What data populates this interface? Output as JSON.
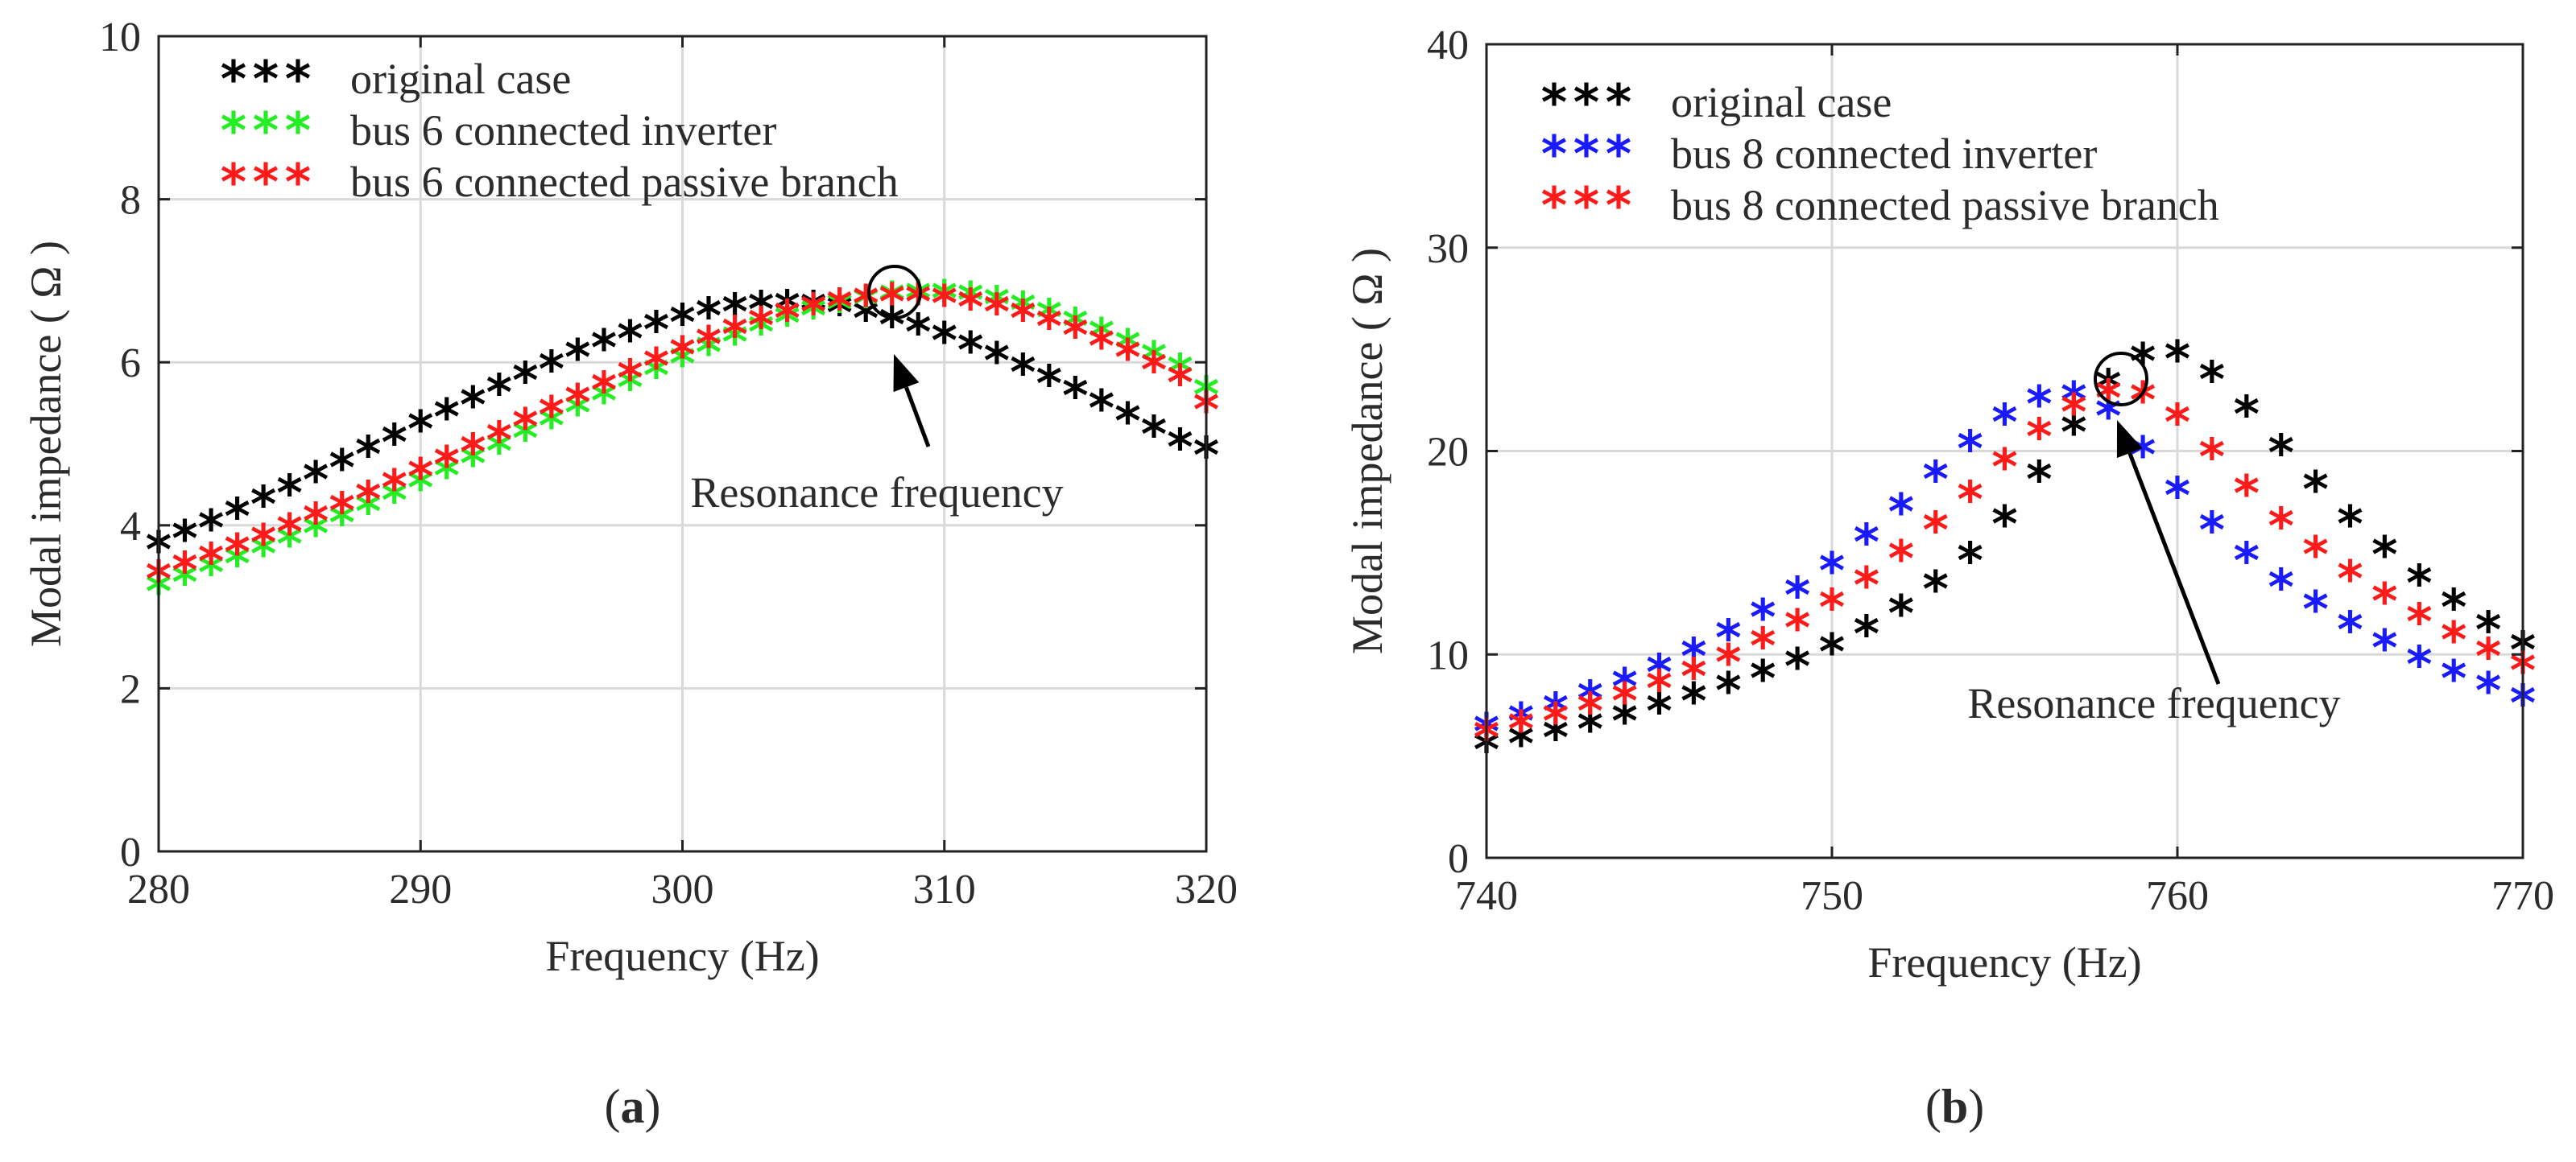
{
  "chart_data": [
    {
      "type": "scatter",
      "panel_label": "a",
      "xlabel": "Frequency (Hz)",
      "ylabel": "Modal impedance ( Ω )",
      "xlim": [
        280,
        320
      ],
      "ylim": [
        0,
        10
      ],
      "xticks": [
        280,
        290,
        300,
        310,
        320
      ],
      "yticks": [
        0,
        2,
        4,
        6,
        8,
        10
      ],
      "grid": true,
      "legend_position": "top-left",
      "marker": "*",
      "x": [
        280,
        281,
        282,
        283,
        284,
        285,
        286,
        287,
        288,
        289,
        290,
        291,
        292,
        293,
        294,
        295,
        296,
        297,
        298,
        299,
        300,
        301,
        302,
        303,
        304,
        305,
        306,
        307,
        308,
        309,
        310,
        311,
        312,
        313,
        314,
        315,
        316,
        317,
        318,
        319,
        320
      ],
      "series": [
        {
          "name": "original case",
          "color": "#000000",
          "values": [
            3.72,
            3.86,
            3.99,
            4.13,
            4.28,
            4.42,
            4.58,
            4.73,
            4.89,
            5.04,
            5.2,
            5.35,
            5.5,
            5.65,
            5.8,
            5.94,
            6.08,
            6.2,
            6.31,
            6.42,
            6.51,
            6.59,
            6.64,
            6.67,
            6.68,
            6.67,
            6.63,
            6.56,
            6.48,
            6.39,
            6.29,
            6.17,
            6.04,
            5.9,
            5.76,
            5.61,
            5.46,
            5.3,
            5.14,
            4.98,
            4.88
          ]
        },
        {
          "name": "bus 6 connected inverter",
          "color": "#22ee22",
          "values": [
            3.21,
            3.32,
            3.44,
            3.55,
            3.67,
            3.79,
            3.92,
            4.05,
            4.19,
            4.33,
            4.48,
            4.63,
            4.78,
            4.93,
            5.09,
            5.24,
            5.4,
            5.55,
            5.71,
            5.86,
            6.0,
            6.14,
            6.27,
            6.39,
            6.5,
            6.59,
            6.67,
            6.73,
            6.78,
            6.8,
            6.8,
            6.78,
            6.73,
            6.66,
            6.57,
            6.46,
            6.34,
            6.2,
            6.05,
            5.9,
            5.62
          ]
        },
        {
          "name": "bus 6 connected passive branch",
          "color": "#ff1a1a",
          "values": [
            3.36,
            3.47,
            3.58,
            3.69,
            3.81,
            3.94,
            4.07,
            4.2,
            4.34,
            4.48,
            4.62,
            4.77,
            4.92,
            5.07,
            5.23,
            5.38,
            5.53,
            5.68,
            5.83,
            5.97,
            6.11,
            6.24,
            6.36,
            6.47,
            6.56,
            6.64,
            6.7,
            6.74,
            6.76,
            6.76,
            6.74,
            6.7,
            6.64,
            6.56,
            6.46,
            6.35,
            6.22,
            6.08,
            5.93,
            5.77,
            5.44
          ]
        }
      ],
      "annotation": "Resonance frequency"
    },
    {
      "type": "scatter",
      "panel_label": "b",
      "xlabel": "Frequency (Hz)",
      "ylabel": "Modal impedance ( Ω )",
      "xlim": [
        740,
        770
      ],
      "ylim": [
        0,
        40
      ],
      "xticks": [
        740,
        750,
        760,
        770
      ],
      "yticks": [
        0,
        10,
        20,
        30,
        40
      ],
      "grid": true,
      "legend_position": "top-left",
      "marker": "*",
      "x": [
        740,
        741,
        742,
        743,
        744,
        745,
        746,
        747,
        748,
        749,
        750,
        751,
        752,
        753,
        754,
        755,
        756,
        757,
        758,
        759,
        760,
        761,
        762,
        763,
        764,
        765,
        766,
        767,
        768,
        769,
        770
      ],
      "series": [
        {
          "name": "original case",
          "color": "#000000",
          "values": [
            5.4,
            5.7,
            6.0,
            6.4,
            6.8,
            7.3,
            7.8,
            8.3,
            8.9,
            9.5,
            10.2,
            11.1,
            12.1,
            13.3,
            14.7,
            16.5,
            18.7,
            21.0,
            23.2,
            24.5,
            24.6,
            23.6,
            21.9,
            20.0,
            18.2,
            16.5,
            15.0,
            13.6,
            12.4,
            11.3,
            10.3
          ]
        },
        {
          "name": "bus 8 connected inverter",
          "color": "#1a1aff",
          "values": [
            6.3,
            6.8,
            7.3,
            7.9,
            8.5,
            9.2,
            10.0,
            10.9,
            11.9,
            13.0,
            14.2,
            15.6,
            17.1,
            18.7,
            20.2,
            21.5,
            22.4,
            22.6,
            21.8,
            19.9,
            17.9,
            16.2,
            14.7,
            13.4,
            12.3,
            11.3,
            10.4,
            9.6,
            8.9,
            8.3,
            7.7
          ]
        },
        {
          "name": "bus 8 connected passive branch",
          "color": "#ff1a1a",
          "values": [
            6.0,
            6.4,
            6.8,
            7.3,
            7.8,
            8.4,
            9.0,
            9.7,
            10.5,
            11.4,
            12.4,
            13.5,
            14.8,
            16.2,
            17.7,
            19.3,
            20.8,
            22.0,
            22.7,
            22.6,
            21.5,
            19.8,
            18.0,
            16.4,
            15.0,
            13.8,
            12.7,
            11.7,
            10.8,
            10.0,
            9.3
          ]
        }
      ],
      "annotation": "Resonance frequency"
    }
  ]
}
